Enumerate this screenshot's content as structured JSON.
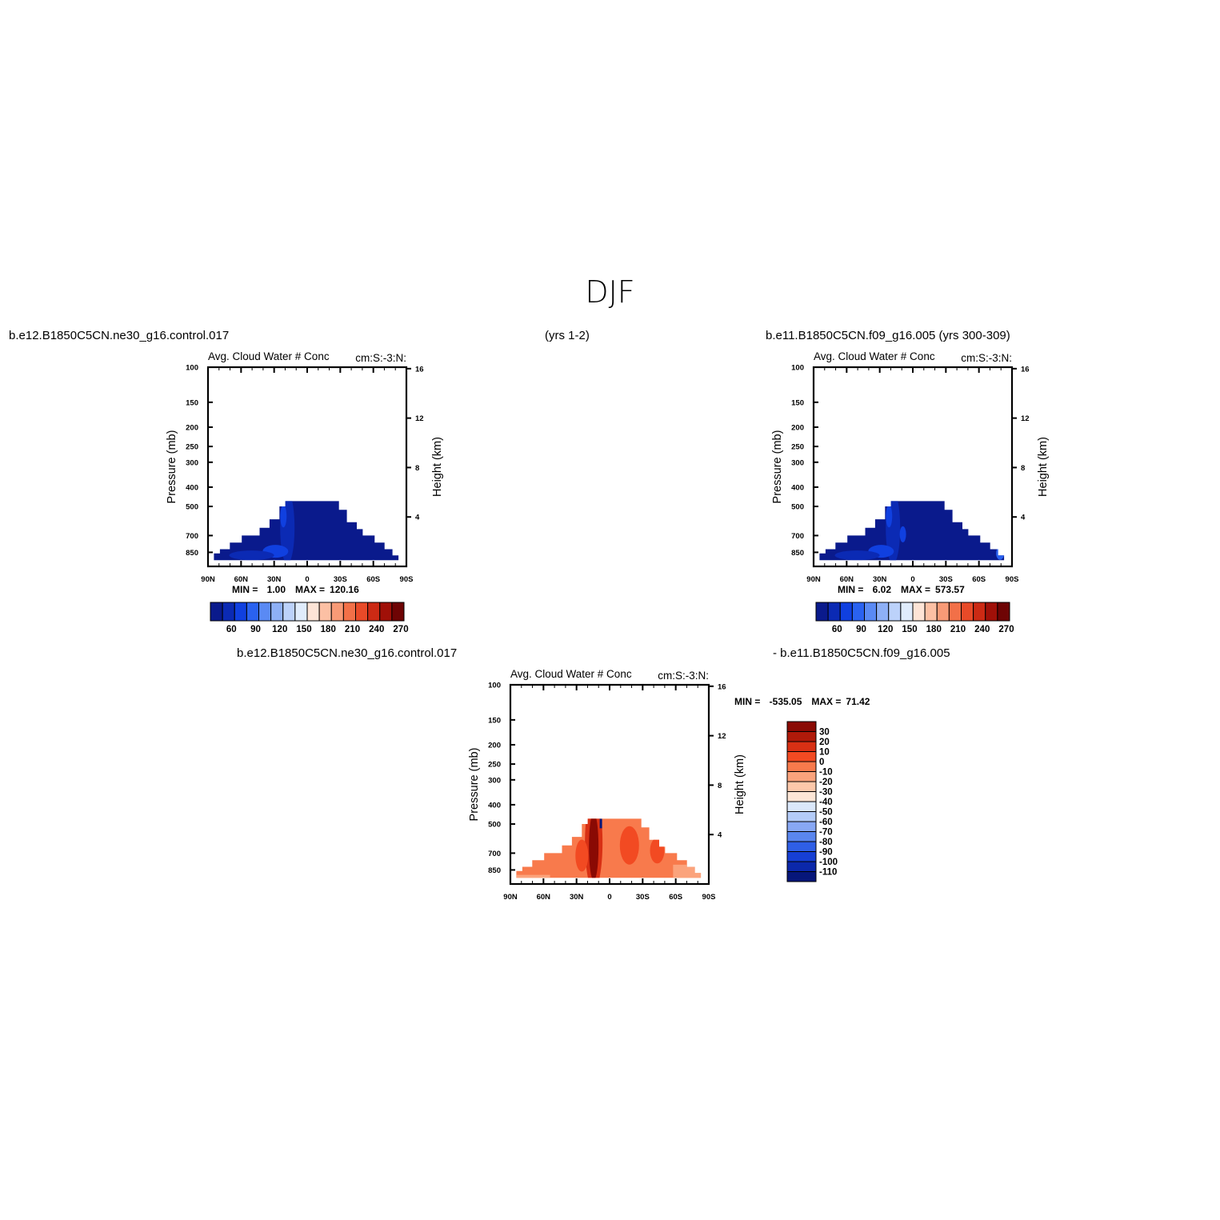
{
  "page": {
    "title": "DJF",
    "case_left": "b.e12.B1850C5CN.ne30_g16.control.017",
    "case_left_years": "(yrs 1-2)",
    "case_right": "b.e11.B1850C5CN.f09_g16.005 (yrs 300-309)",
    "diff_case_a": "b.e12.B1850C5CN.ne30_g16.control.017",
    "diff_case_b": "- b.e11.B1850C5CN.f09_g16.005"
  },
  "chart_data": [
    {
      "id": "control",
      "type": "contour",
      "title": "Avg. Cloud Water # Conc",
      "subtitle": "cm:S:-3:N:",
      "ylabel": "Pressure (mb)",
      "ylabel_right": "Height (km)",
      "x_ticks": [
        "90N",
        "60N",
        "30N",
        "0",
        "30S",
        "60S",
        "90S"
      ],
      "y_ticks": [
        100,
        150,
        200,
        250,
        300,
        400,
        500,
        700,
        850
      ],
      "height_ticks": [
        4,
        8,
        12,
        16
      ],
      "ylim": [
        1000,
        100
      ],
      "min_label": "MIN =",
      "min_value": "1.00",
      "max_label": "MAX =",
      "max_value": "120.16",
      "contour_levels": [
        60,
        90,
        120,
        150,
        180,
        210,
        240,
        270
      ],
      "colorbar_labels": [
        "60",
        "90",
        "120",
        "150",
        "180",
        "210",
        "240",
        "270"
      ]
    },
    {
      "id": "reference",
      "type": "contour",
      "title": "Avg. Cloud Water # Conc",
      "subtitle": "cm:S:-3:N:",
      "ylabel": "Pressure (mb)",
      "ylabel_right": "Height (km)",
      "x_ticks": [
        "90N",
        "60N",
        "30N",
        "0",
        "30S",
        "60S",
        "90S"
      ],
      "y_ticks": [
        100,
        150,
        200,
        250,
        300,
        400,
        500,
        700,
        850
      ],
      "height_ticks": [
        4,
        8,
        12,
        16
      ],
      "ylim": [
        1000,
        100
      ],
      "min_label": "MIN =",
      "min_value": "6.02",
      "max_label": "MAX =",
      "max_value": "573.57",
      "contour_levels": [
        60,
        90,
        120,
        150,
        180,
        210,
        240,
        270
      ],
      "colorbar_labels": [
        "60",
        "90",
        "120",
        "150",
        "180",
        "210",
        "240",
        "270"
      ]
    },
    {
      "id": "difference",
      "type": "contour",
      "title": "Avg. Cloud Water # Conc",
      "subtitle": "cm:S:-3:N:",
      "ylabel": "Pressure (mb)",
      "ylabel_right": "Height (km)",
      "x_ticks": [
        "90N",
        "60N",
        "30N",
        "0",
        "30S",
        "60S",
        "90S"
      ],
      "y_ticks": [
        100,
        150,
        200,
        250,
        300,
        400,
        500,
        700,
        850
      ],
      "height_ticks": [
        4,
        8,
        12,
        16
      ],
      "ylim": [
        1000,
        100
      ],
      "min_label": "MIN =",
      "min_value": "-535.05",
      "max_label": "MAX =",
      "max_value": "71.42",
      "contour_levels": [
        -110,
        -100,
        -90,
        -80,
        -70,
        -60,
        -50,
        -40,
        -30,
        -20,
        -10,
        0,
        10,
        20,
        30
      ],
      "colorbar_labels": [
        "30",
        "20",
        "10",
        "0",
        "-10",
        "-20",
        "-30",
        "-40",
        "-50",
        "-60",
        "-70",
        "-80",
        "-90",
        "-100",
        "-110"
      ]
    }
  ],
  "colors": {
    "blue_red_scale": [
      "#0a1a8c",
      "#0b2ab4",
      "#1040e0",
      "#2a62f0",
      "#5a8af4",
      "#8eb0f6",
      "#bcd2fa",
      "#e0ecfc",
      "#fde4d6",
      "#fcc0a4",
      "#f89a76",
      "#f27048",
      "#e84a28",
      "#cc2a14",
      "#a01008",
      "#6e0404"
    ],
    "diff_scale_top_down": [
      "#8a0a04",
      "#b01a0a",
      "#d83014",
      "#f24a22",
      "#f87a4c",
      "#fba37c",
      "#fdc8aa",
      "#fde6d6",
      "#dbe8fb",
      "#b4ccf8",
      "#88a8f4",
      "#5a86ee",
      "#2f5fe6",
      "#163fd4",
      "#0b28aa",
      "#06167a"
    ]
  }
}
